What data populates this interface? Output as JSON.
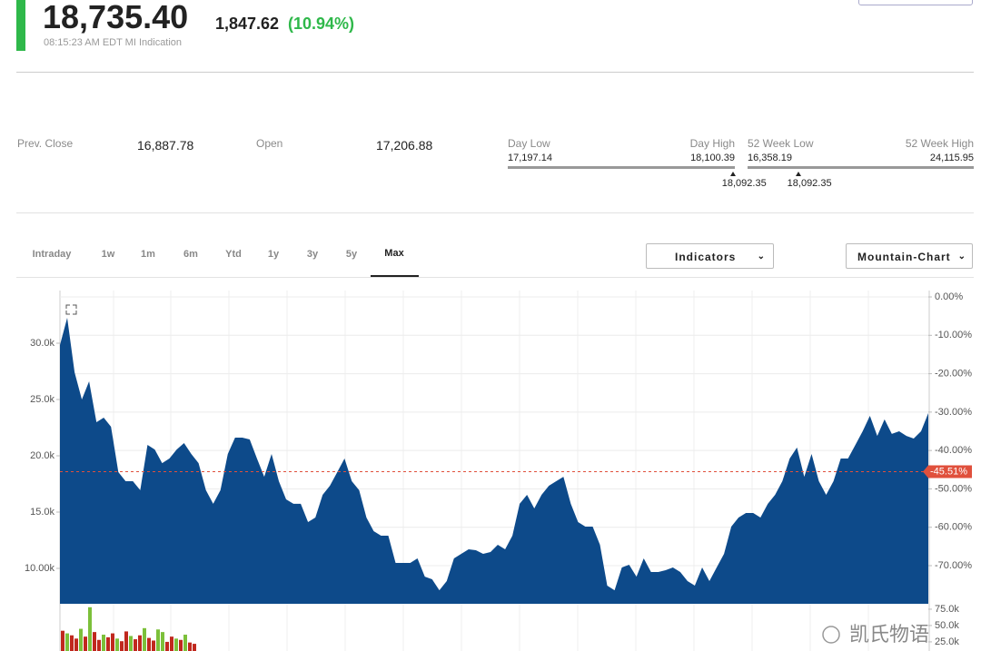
{
  "header": {
    "price": "18,735.40",
    "change": "1,847.62",
    "change_percent": "(10.94%)",
    "timestamp": "08:15:23 AM EDT MI Indication"
  },
  "stats": {
    "prev_close": {
      "label": "Prev. Close",
      "value": "16,887.78"
    },
    "open": {
      "label": "Open",
      "value": "17,206.88"
    },
    "day_range": {
      "low_label": "Day Low",
      "low": {
        "value": 17197.14,
        "label": "17,197.14"
      },
      "high_label": "Day High",
      "high": {
        "value": 18100.39,
        "label": "18,100.39"
      },
      "current": {
        "value": 18092.35,
        "label": "18,092.35"
      }
    },
    "week52_range": {
      "low_label": "52 Week Low",
      "low": {
        "value": 16358.19,
        "label": "16,358.19"
      },
      "high_label": "52 Week High",
      "high": {
        "value": 24115.95,
        "label": "24,115.95"
      },
      "current": {
        "value": 18092.35,
        "label": "18,092.35"
      }
    }
  },
  "tabs": {
    "items": [
      "Intraday",
      "1w",
      "1m",
      "6m",
      "Ytd",
      "1y",
      "3y",
      "5y",
      "Max"
    ],
    "active": 8
  },
  "controls": {
    "indicators": "Indicators",
    "chart_type": "Mountain-Chart"
  },
  "chart_data": [
    {
      "type": "area",
      "color": "#0d4a8a",
      "values": [
        29840,
        32260,
        27420,
        25000,
        26610,
        22980,
        23390,
        22580,
        18550,
        17740,
        17740,
        16940,
        20970,
        20560,
        19350,
        19760,
        20560,
        21130,
        20160,
        19350,
        16940,
        15730,
        16940,
        20160,
        21610,
        21610,
        21450,
        19760,
        18140,
        20160,
        17740,
        16130,
        15730,
        15730,
        14110,
        14520,
        16530,
        17340,
        18550,
        19760,
        17740,
        16940,
        14520,
        13310,
        12900,
        12900,
        10480,
        10480,
        10480,
        10890,
        9270,
        9030,
        8060,
        8870,
        10890,
        11290,
        11690,
        11610,
        11290,
        11450,
        12100,
        11690,
        12900,
        15730,
        16530,
        15320,
        16530,
        17340,
        17740,
        18140,
        15730,
        14110,
        13710,
        13710,
        12100,
        8470,
        8060,
        10080,
        10320,
        9270,
        10890,
        9680,
        9680,
        9840,
        10080,
        9680,
        8870,
        8470,
        10080,
        8870,
        10080,
        11290,
        13710,
        14520,
        14920,
        14920,
        14520,
        15730,
        16530,
        17740,
        19760,
        20730,
        18140,
        20160,
        17740,
        16530,
        17740,
        19760,
        19760,
        20970,
        22180,
        23550,
        21770,
        23230,
        21940,
        22180,
        21770,
        21530,
        22180,
        23790
      ],
      "ylim": [
        6855,
        34677
      ],
      "yticks": [
        {
          "value": 10000,
          "label": "10.00k"
        },
        {
          "value": 15000,
          "label": "15.0k"
        },
        {
          "value": 20000,
          "label": "20.0k"
        },
        {
          "value": 25000,
          "label": "25.0k"
        },
        {
          "value": 30000,
          "label": "30.0k"
        }
      ],
      "y2lim": [
        -79.93,
        1.66
      ],
      "y2ticks": [
        {
          "value": 0,
          "label": "0.00%"
        },
        {
          "value": -10,
          "label": "-10.00%"
        },
        {
          "value": -20,
          "label": "-20.00%"
        },
        {
          "value": -30,
          "label": "-30.00%"
        },
        {
          "value": -40,
          "label": "-40.00%"
        },
        {
          "value": -50,
          "label": "-50.00%"
        },
        {
          "value": -60,
          "label": "-60.00%"
        },
        {
          "value": -70,
          "label": "-70.00%"
        }
      ],
      "current": {
        "value": -45.51,
        "label": "-45.51%",
        "axis": "y2",
        "color": "#e0503c"
      },
      "grid": true
    },
    {
      "type": "bar",
      "values": [
        42000,
        38000,
        35000,
        30000,
        45000,
        33000,
        78000,
        40000,
        28000,
        36000,
        32000,
        38000,
        30000,
        26000,
        41000,
        34000,
        29000,
        35000,
        46000,
        31000,
        27000,
        44000,
        40000,
        25000,
        33000,
        30000,
        28000,
        36000,
        24000,
        22000
      ],
      "colors": [
        "#c0281e",
        "#7cc03a",
        "#c0281e",
        "#c0281e",
        "#7cc03a",
        "#c0281e",
        "#7cc03a",
        "#c0281e",
        "#c0281e",
        "#7cc03a",
        "#c0281e",
        "#c0281e",
        "#7cc03a",
        "#c0281e",
        "#c0281e",
        "#7cc03a",
        "#c0281e",
        "#c0281e",
        "#7cc03a",
        "#c0281e",
        "#c0281e",
        "#7cc03a",
        "#7cc03a",
        "#c0281e",
        "#c0281e",
        "#7cc03a",
        "#c0281e",
        "#7cc03a",
        "#c0281e",
        "#c0281e"
      ],
      "ylim": [
        11000,
        80500
      ],
      "yticks": [
        {
          "value": 75000,
          "label": "75.0k"
        },
        {
          "value": 50000,
          "label": "50.0k"
        },
        {
          "value": 25000,
          "label": "25.0k"
        }
      ]
    }
  ],
  "watermark": "凯氏物语"
}
